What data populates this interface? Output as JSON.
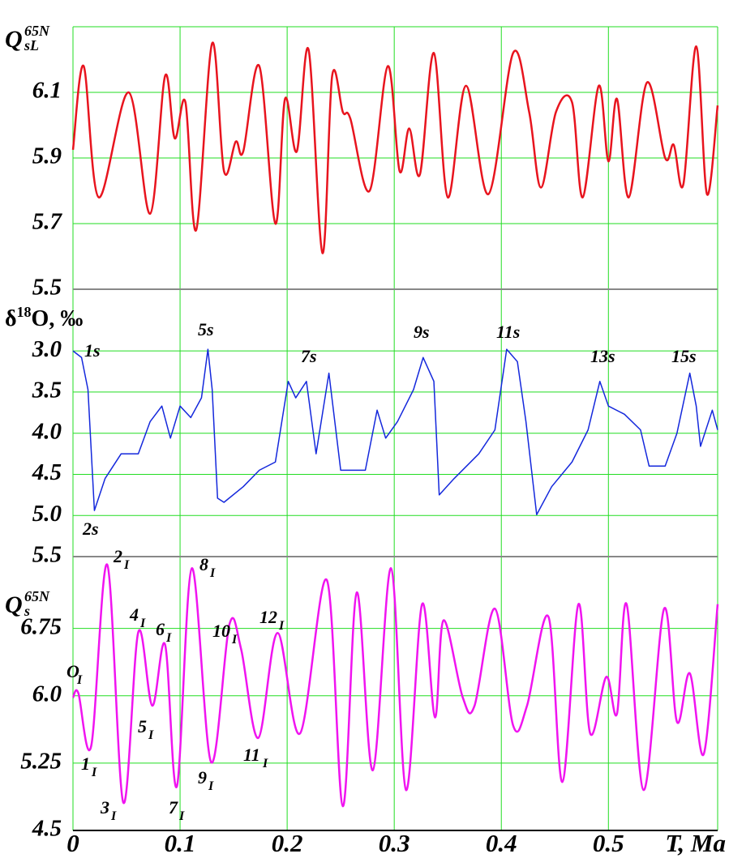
{
  "chart_data": [
    {
      "type": "line",
      "ylabel": [
        "Q",
        "65N",
        "sL"
      ],
      "xlim": [
        0,
        0.602
      ],
      "ylim": [
        5.5,
        6.3
      ],
      "xticks": [
        0,
        0.1,
        0.2,
        0.3,
        0.4,
        0.5
      ],
      "yticks": [
        5.5,
        5.7,
        5.9,
        6.1
      ],
      "grid": true,
      "interpolation": "smooth",
      "x": [
        0,
        0.01,
        0.024,
        0.052,
        0.072,
        0.086,
        0.095,
        0.105,
        0.115,
        0.13,
        0.141,
        0.152,
        0.159,
        0.174,
        0.189,
        0.198,
        0.209,
        0.22,
        0.233,
        0.242,
        0.252,
        0.259,
        0.277,
        0.294,
        0.305,
        0.314,
        0.324,
        0.337,
        0.35,
        0.367,
        0.388,
        0.411,
        0.426,
        0.437,
        0.451,
        0.466,
        0.476,
        0.491,
        0.5,
        0.508,
        0.519,
        0.536,
        0.553,
        0.561,
        0.57,
        0.582,
        0.592,
        0.602
      ],
      "series": [
        {
          "color": "#e8141e",
          "values": [
            5.925,
            6.18,
            5.78,
            6.1,
            5.73,
            6.15,
            5.96,
            6.07,
            5.68,
            6.25,
            5.86,
            5.95,
            5.92,
            6.18,
            5.7,
            6.08,
            5.92,
            6.23,
            5.61,
            6.15,
            6.04,
            6.02,
            5.8,
            6.18,
            5.86,
            5.99,
            5.85,
            6.22,
            5.78,
            6.12,
            5.79,
            6.22,
            6.04,
            5.81,
            6.04,
            6.07,
            5.78,
            6.12,
            5.89,
            6.08,
            5.78,
            6.13,
            5.9,
            5.94,
            5.82,
            6.24,
            5.79,
            6.06
          ]
        }
      ]
    },
    {
      "type": "line",
      "ylabel": [
        "δ",
        "18",
        "O, ‰"
      ],
      "xlim": [
        0,
        0.602
      ],
      "ylim": [
        5.5,
        2.25
      ],
      "xticks": [
        0,
        0.1,
        0.2,
        0.3,
        0.4,
        0.5
      ],
      "yticks": [
        {
          "value": 3,
          "label": "3.0"
        },
        3.5,
        {
          "value": 4,
          "label": "4.0"
        },
        4.5,
        {
          "value": 5,
          "label": "5.0"
        },
        5.5
      ],
      "grid": true,
      "interpolation": "linear",
      "annotations": [
        "1s",
        "2s",
        "5s",
        "7s",
        "9s",
        "11s",
        "13s",
        "15s"
      ],
      "x": [
        0,
        0.008,
        0.014,
        0.02,
        0.03,
        0.045,
        0.061,
        0.072,
        0.083,
        0.091,
        0.1,
        0.11,
        0.12,
        0.126,
        0.13,
        0.135,
        0.141,
        0.159,
        0.174,
        0.189,
        0.201,
        0.208,
        0.218,
        0.227,
        0.239,
        0.25,
        0.273,
        0.284,
        0.292,
        0.303,
        0.318,
        0.327,
        0.337,
        0.342,
        0.356,
        0.379,
        0.394,
        0.405,
        0.415,
        0.423,
        0.433,
        0.447,
        0.466,
        0.481,
        0.492,
        0.5,
        0.515,
        0.53,
        0.538,
        0.553,
        0.564,
        0.576,
        0.582,
        0.586,
        0.597,
        0.602
      ],
      "series": [
        {
          "color": "#1428dc",
          "values": [
            3.0,
            3.08,
            3.47,
            4.94,
            4.55,
            4.25,
            4.25,
            3.86,
            3.67,
            4.06,
            3.67,
            3.81,
            3.57,
            2.98,
            3.47,
            4.79,
            4.84,
            4.65,
            4.45,
            4.35,
            3.37,
            3.57,
            3.37,
            4.25,
            3.27,
            4.45,
            4.45,
            3.72,
            4.06,
            3.86,
            3.47,
            3.08,
            3.37,
            4.75,
            4.55,
            4.25,
            3.96,
            2.98,
            3.13,
            3.86,
            4.99,
            4.65,
            4.35,
            3.96,
            3.37,
            3.67,
            3.77,
            3.96,
            4.4,
            4.4,
            4.0,
            3.27,
            3.67,
            4.16,
            3.72,
            3.96
          ]
        }
      ]
    },
    {
      "type": "line",
      "ylabel": [
        "Q",
        "65N",
        "s"
      ],
      "xlabel": "T, Ma",
      "xlim": [
        0,
        0.602
      ],
      "ylim": [
        4.5,
        7.55
      ],
      "xticks": [
        0,
        0.1,
        0.2,
        0.3,
        0.4,
        0.5
      ],
      "yticks": [
        4.5,
        5.25,
        {
          "value": 6,
          "label": "6.0"
        },
        6.75
      ],
      "grid": true,
      "interpolation": "smooth",
      "annotations": [
        {
          "text": "O",
          "sub": "I"
        },
        {
          "text": "1",
          "sub": "I"
        },
        {
          "text": "2",
          "sub": "I"
        },
        {
          "text": "3",
          "sub": "I"
        },
        {
          "text": "4",
          "sub": "I"
        },
        {
          "text": "5",
          "sub": "I"
        },
        {
          "text": "6",
          "sub": "I"
        },
        {
          "text": "7",
          "sub": "I"
        },
        {
          "text": "8",
          "sub": "I"
        },
        {
          "text": "9",
          "sub": "I"
        },
        {
          "text": "10",
          "sub": "I"
        },
        {
          "text": "11",
          "sub": "I"
        },
        {
          "text": "12",
          "sub": "I"
        }
      ],
      "x": [
        0,
        0.005,
        0.017,
        0.032,
        0.047,
        0.061,
        0.074,
        0.086,
        0.097,
        0.111,
        0.129,
        0.146,
        0.157,
        0.173,
        0.191,
        0.212,
        0.237,
        0.252,
        0.265,
        0.28,
        0.297,
        0.311,
        0.326,
        0.338,
        0.346,
        0.364,
        0.375,
        0.394,
        0.411,
        0.424,
        0.444,
        0.457,
        0.472,
        0.483,
        0.498,
        0.508,
        0.517,
        0.533,
        0.552,
        0.564,
        0.576,
        0.589,
        0.602
      ],
      "series": [
        {
          "color": "#f014f0",
          "values": [
            5.98,
            6.03,
            5.44,
            7.46,
            4.81,
            6.71,
            5.89,
            6.57,
            4.99,
            7.42,
            5.26,
            6.79,
            6.52,
            5.53,
            6.7,
            5.58,
            7.29,
            4.77,
            7.15,
            5.17,
            7.42,
            4.95,
            7.02,
            5.76,
            6.84,
            5.98,
            5.89,
            6.97,
            5.67,
            5.89,
            6.88,
            5.04,
            7.02,
            5.58,
            6.21,
            5.8,
            7.02,
            4.95,
            6.97,
            5.71,
            6.25,
            5.35,
            7.02
          ]
        }
      ]
    }
  ]
}
